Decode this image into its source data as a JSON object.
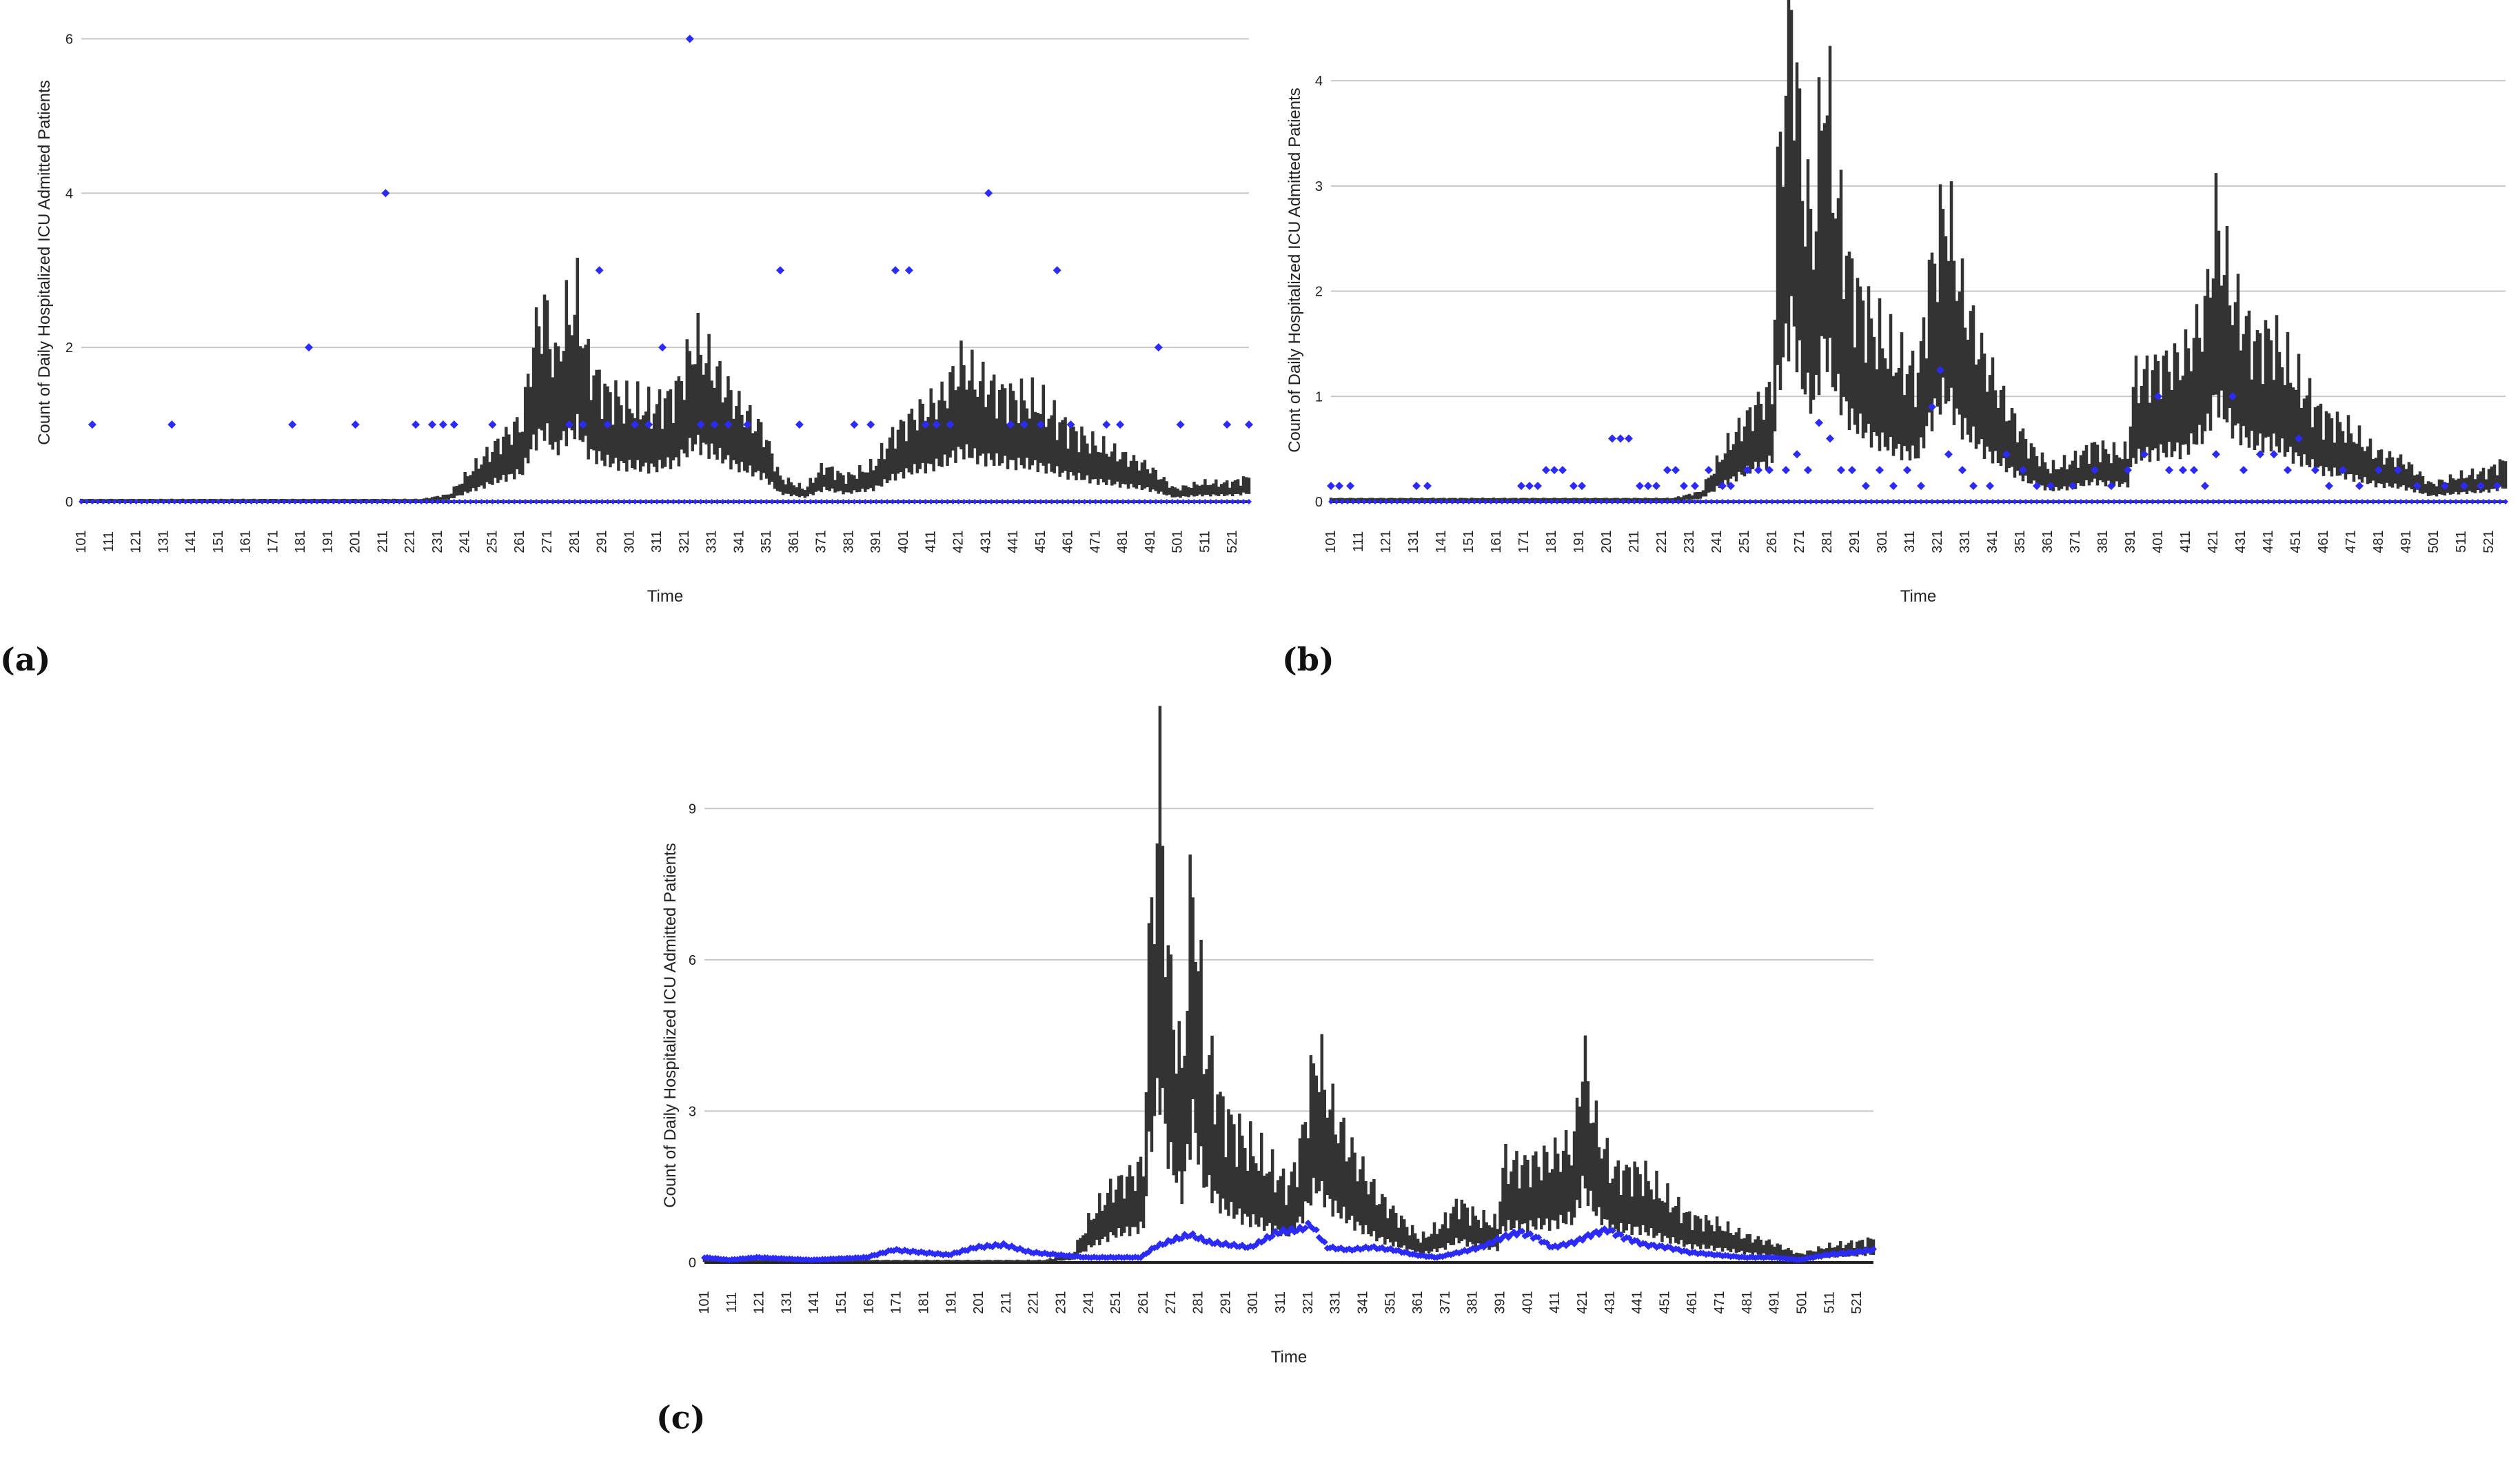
{
  "chart_data": [
    {
      "panel_label": "(a)",
      "type": "line",
      "xlabel": "Time",
      "ylabel": "Count of Daily Hospitalized ICU Admitted Patients",
      "xlim": [
        101,
        527
      ],
      "ylim": [
        0,
        6.2
      ],
      "yticks": [
        "0",
        "2",
        "4",
        "6"
      ],
      "xticks": [
        "101",
        "111",
        "121",
        "131",
        "141",
        "151",
        "161",
        "171",
        "181",
        "191",
        "201",
        "211",
        "221",
        "231",
        "241",
        "251",
        "261",
        "271",
        "281",
        "291",
        "301",
        "311",
        "321",
        "331",
        "341",
        "351",
        "361",
        "371",
        "381",
        "391",
        "401",
        "411",
        "421",
        "431",
        "441",
        "451",
        "461",
        "471",
        "481",
        "491",
        "501",
        "511",
        "521"
      ],
      "grid": true,
      "colors": {
        "band": "#333333",
        "observed": "#2b2bf5",
        "grid": "#c8c8c8"
      },
      "band_mean_profile": [
        [
          101,
          0.01
        ],
        [
          225,
          0.01
        ],
        [
          235,
          0.05
        ],
        [
          245,
          0.3
        ],
        [
          255,
          0.55
        ],
        [
          262,
          0.7
        ],
        [
          266,
          1.4
        ],
        [
          270,
          1.7
        ],
        [
          274,
          1.2
        ],
        [
          278,
          1.6
        ],
        [
          282,
          1.75
        ],
        [
          286,
          1.2
        ],
        [
          292,
          0.95
        ],
        [
          300,
          0.85
        ],
        [
          310,
          0.8
        ],
        [
          318,
          0.95
        ],
        [
          325,
          1.4
        ],
        [
          332,
          1.15
        ],
        [
          340,
          0.85
        ],
        [
          350,
          0.6
        ],
        [
          356,
          0.2
        ],
        [
          365,
          0.1
        ],
        [
          372,
          0.3
        ],
        [
          380,
          0.2
        ],
        [
          390,
          0.3
        ],
        [
          398,
          0.6
        ],
        [
          405,
          0.75
        ],
        [
          415,
          0.9
        ],
        [
          422,
          1.2
        ],
        [
          428,
          1.05
        ],
        [
          436,
          0.95
        ],
        [
          442,
          0.9
        ],
        [
          450,
          0.85
        ],
        [
          460,
          0.65
        ],
        [
          470,
          0.5
        ],
        [
          480,
          0.4
        ],
        [
          490,
          0.3
        ],
        [
          500,
          0.1
        ],
        [
          510,
          0.15
        ],
        [
          520,
          0.15
        ],
        [
          527,
          0.2
        ]
      ],
      "observed_nonzero": [
        [
          105,
          1
        ],
        [
          134,
          1
        ],
        [
          178,
          1
        ],
        [
          184,
          2
        ],
        [
          201,
          1
        ],
        [
          212,
          4
        ],
        [
          223,
          1
        ],
        [
          229,
          1
        ],
        [
          233,
          1
        ],
        [
          237,
          1
        ],
        [
          251,
          1
        ],
        [
          279,
          1
        ],
        [
          284,
          1
        ],
        [
          290,
          3
        ],
        [
          293,
          1
        ],
        [
          303,
          1
        ],
        [
          308,
          1
        ],
        [
          313,
          2
        ],
        [
          323,
          6
        ],
        [
          327,
          1
        ],
        [
          332,
          1
        ],
        [
          337,
          1
        ],
        [
          344,
          1
        ],
        [
          356,
          3
        ],
        [
          363,
          1
        ],
        [
          383,
          1
        ],
        [
          389,
          1
        ],
        [
          398,
          3
        ],
        [
          403,
          3
        ],
        [
          409,
          1
        ],
        [
          413,
          1
        ],
        [
          418,
          1
        ],
        [
          432,
          4
        ],
        [
          440,
          1
        ],
        [
          445,
          1
        ],
        [
          451,
          1
        ],
        [
          457,
          3
        ],
        [
          462,
          1
        ],
        [
          475,
          1
        ],
        [
          480,
          1
        ],
        [
          494,
          2
        ],
        [
          502,
          1
        ],
        [
          519,
          1
        ],
        [
          527,
          1
        ]
      ]
    },
    {
      "panel_label": "(b)",
      "type": "line",
      "xlabel": "Time",
      "ylabel": "Count of Daily Hospitalized ICU Admitted Patients",
      "xlim": [
        101,
        527
      ],
      "ylim": [
        0,
        4.4
      ],
      "yticks": [
        "0",
        "1",
        "2",
        "3",
        "4"
      ],
      "xticks": [
        "101",
        "111",
        "121",
        "131",
        "141",
        "151",
        "161",
        "171",
        "181",
        "191",
        "201",
        "211",
        "221",
        "231",
        "241",
        "251",
        "261",
        "271",
        "281",
        "291",
        "301",
        "311",
        "321",
        "331",
        "341",
        "351",
        "361",
        "371",
        "381",
        "391",
        "401",
        "411",
        "421",
        "431",
        "441",
        "451",
        "461",
        "471",
        "481",
        "491",
        "501",
        "511",
        "521"
      ],
      "grid": true,
      "colors": {
        "band": "#333333",
        "observed": "#2b2bf5",
        "grid": "#c8c8c8"
      },
      "band_mean_profile": [
        [
          101,
          0.01
        ],
        [
          225,
          0.01
        ],
        [
          235,
          0.05
        ],
        [
          245,
          0.35
        ],
        [
          255,
          0.6
        ],
        [
          261,
          0.7
        ],
        [
          263,
          2.0
        ],
        [
          268,
          3.2
        ],
        [
          272,
          2.1
        ],
        [
          276,
          1.7
        ],
        [
          280,
          2.8
        ],
        [
          284,
          2.0
        ],
        [
          290,
          1.4
        ],
        [
          298,
          1.1
        ],
        [
          306,
          0.9
        ],
        [
          314,
          0.8
        ],
        [
          318,
          1.4
        ],
        [
          324,
          1.9
        ],
        [
          330,
          1.3
        ],
        [
          338,
          0.9
        ],
        [
          346,
          0.6
        ],
        [
          354,
          0.35
        ],
        [
          362,
          0.2
        ],
        [
          370,
          0.25
        ],
        [
          378,
          0.35
        ],
        [
          384,
          0.3
        ],
        [
          390,
          0.3
        ],
        [
          392,
          0.75
        ],
        [
          400,
          0.85
        ],
        [
          410,
          0.9
        ],
        [
          418,
          1.2
        ],
        [
          422,
          1.8
        ],
        [
          428,
          1.3
        ],
        [
          436,
          1.0
        ],
        [
          442,
          1.05
        ],
        [
          450,
          0.8
        ],
        [
          460,
          0.55
        ],
        [
          470,
          0.45
        ],
        [
          480,
          0.3
        ],
        [
          490,
          0.25
        ],
        [
          500,
          0.1
        ],
        [
          510,
          0.15
        ],
        [
          520,
          0.18
        ],
        [
          527,
          0.25
        ]
      ],
      "observed_nonzero": [
        [
          101,
          0.15
        ],
        [
          104,
          0.15
        ],
        [
          108,
          0.15
        ],
        [
          132,
          0.15
        ],
        [
          136,
          0.15
        ],
        [
          170,
          0.15
        ],
        [
          173,
          0.15
        ],
        [
          176,
          0.15
        ],
        [
          179,
          0.3
        ],
        [
          182,
          0.3
        ],
        [
          185,
          0.3
        ],
        [
          189,
          0.15
        ],
        [
          192,
          0.15
        ],
        [
          203,
          0.6
        ],
        [
          206,
          0.6
        ],
        [
          209,
          0.6
        ],
        [
          213,
          0.15
        ],
        [
          216,
          0.15
        ],
        [
          219,
          0.15
        ],
        [
          223,
          0.3
        ],
        [
          226,
          0.3
        ],
        [
          229,
          0.15
        ],
        [
          233,
          0.15
        ],
        [
          238,
          0.3
        ],
        [
          243,
          0.15
        ],
        [
          246,
          0.15
        ],
        [
          252,
          0.3
        ],
        [
          256,
          0.3
        ],
        [
          260,
          0.3
        ],
        [
          266,
          0.3
        ],
        [
          270,
          0.45
        ],
        [
          274,
          0.3
        ],
        [
          278,
          0.75
        ],
        [
          282,
          0.6
        ],
        [
          286,
          0.3
        ],
        [
          290,
          0.3
        ],
        [
          295,
          0.15
        ],
        [
          300,
          0.3
        ],
        [
          305,
          0.15
        ],
        [
          310,
          0.3
        ],
        [
          315,
          0.15
        ],
        [
          319,
          0.9
        ],
        [
          322,
          1.25
        ],
        [
          325,
          0.45
        ],
        [
          330,
          0.3
        ],
        [
          334,
          0.15
        ],
        [
          340,
          0.15
        ],
        [
          346,
          0.45
        ],
        [
          352,
          0.3
        ],
        [
          357,
          0.15
        ],
        [
          362,
          0.15
        ],
        [
          370,
          0.15
        ],
        [
          378,
          0.3
        ],
        [
          384,
          0.15
        ],
        [
          390,
          0.3
        ],
        [
          396,
          0.45
        ],
        [
          401,
          1.0
        ],
        [
          405,
          0.3
        ],
        [
          410,
          0.3
        ],
        [
          414,
          0.3
        ],
        [
          418,
          0.15
        ],
        [
          422,
          0.45
        ],
        [
          428,
          1.0
        ],
        [
          432,
          0.3
        ],
        [
          438,
          0.45
        ],
        [
          443,
          0.45
        ],
        [
          448,
          0.3
        ],
        [
          452,
          0.6
        ],
        [
          458,
          0.3
        ],
        [
          463,
          0.15
        ],
        [
          468,
          0.3
        ],
        [
          474,
          0.15
        ],
        [
          481,
          0.3
        ],
        [
          488,
          0.3
        ],
        [
          495,
          0.15
        ],
        [
          505,
          0.15
        ],
        [
          512,
          0.15
        ],
        [
          518,
          0.15
        ],
        [
          524,
          0.15
        ]
      ]
    },
    {
      "panel_label": "(c)",
      "type": "line",
      "xlabel": "Time",
      "ylabel": "Count of Daily Hospitalized ICU Admitted Patients",
      "xlim": [
        101,
        527
      ],
      "ylim": [
        0,
        9.4
      ],
      "yticks": [
        "0",
        "3",
        "6",
        "9"
      ],
      "xticks": [
        "101",
        "111",
        "121",
        "131",
        "141",
        "151",
        "161",
        "171",
        "181",
        "191",
        "201",
        "211",
        "221",
        "231",
        "241",
        "251",
        "261",
        "271",
        "281",
        "291",
        "301",
        "311",
        "321",
        "331",
        "341",
        "351",
        "361",
        "371",
        "381",
        "391",
        "401",
        "411",
        "421",
        "431",
        "441",
        "451",
        "461",
        "471",
        "481",
        "491",
        "501",
        "511",
        "521"
      ],
      "grid": true,
      "colors": {
        "band": "#333333",
        "observed": "#2b2bf5",
        "grid": "#c8c8c8"
      },
      "band_mean_profile": [
        [
          101,
          0.02
        ],
        [
          225,
          0.02
        ],
        [
          235,
          0.1
        ],
        [
          242,
          0.6
        ],
        [
          250,
          1.0
        ],
        [
          258,
          1.2
        ],
        [
          261,
          1.3
        ],
        [
          263,
          4.0
        ],
        [
          267,
          6.5
        ],
        [
          270,
          4.0
        ],
        [
          275,
          2.5
        ],
        [
          279,
          5.2
        ],
        [
          283,
          3.0
        ],
        [
          290,
          2.0
        ],
        [
          298,
          1.6
        ],
        [
          306,
          1.3
        ],
        [
          314,
          1.0
        ],
        [
          318,
          1.5
        ],
        [
          324,
          2.8
        ],
        [
          330,
          2.0
        ],
        [
          338,
          1.4
        ],
        [
          346,
          0.9
        ],
        [
          354,
          0.6
        ],
        [
          362,
          0.3
        ],
        [
          370,
          0.5
        ],
        [
          376,
          0.8
        ],
        [
          382,
          0.6
        ],
        [
          390,
          0.5
        ],
        [
          392,
          1.3
        ],
        [
          400,
          1.3
        ],
        [
          410,
          1.4
        ],
        [
          418,
          1.6
        ],
        [
          421,
          2.8
        ],
        [
          426,
          1.8
        ],
        [
          432,
          1.2
        ],
        [
          442,
          1.2
        ],
        [
          450,
          0.9
        ],
        [
          460,
          0.6
        ],
        [
          470,
          0.5
        ],
        [
          480,
          0.35
        ],
        [
          490,
          0.25
        ],
        [
          500,
          0.1
        ],
        [
          510,
          0.2
        ],
        [
          520,
          0.25
        ],
        [
          527,
          0.3
        ]
      ],
      "observed_mean_profile": [
        [
          101,
          0.1
        ],
        [
          110,
          0.05
        ],
        [
          120,
          0.1
        ],
        [
          140,
          0.05
        ],
        [
          160,
          0.1
        ],
        [
          170,
          0.25
        ],
        [
          180,
          0.2
        ],
        [
          190,
          0.15
        ],
        [
          200,
          0.3
        ],
        [
          210,
          0.35
        ],
        [
          220,
          0.2
        ],
        [
          230,
          0.15
        ],
        [
          240,
          0.1
        ],
        [
          250,
          0.1
        ],
        [
          260,
          0.1
        ],
        [
          265,
          0.3
        ],
        [
          272,
          0.45
        ],
        [
          278,
          0.55
        ],
        [
          285,
          0.4
        ],
        [
          292,
          0.35
        ],
        [
          300,
          0.3
        ],
        [
          310,
          0.6
        ],
        [
          318,
          0.65
        ],
        [
          322,
          0.75
        ],
        [
          328,
          0.3
        ],
        [
          336,
          0.25
        ],
        [
          344,
          0.3
        ],
        [
          352,
          0.25
        ],
        [
          360,
          0.15
        ],
        [
          368,
          0.1
        ],
        [
          376,
          0.2
        ],
        [
          384,
          0.3
        ],
        [
          392,
          0.5
        ],
        [
          398,
          0.6
        ],
        [
          404,
          0.5
        ],
        [
          410,
          0.3
        ],
        [
          418,
          0.4
        ],
        [
          424,
          0.55
        ],
        [
          430,
          0.65
        ],
        [
          436,
          0.5
        ],
        [
          444,
          0.35
        ],
        [
          452,
          0.3
        ],
        [
          460,
          0.2
        ],
        [
          470,
          0.15
        ],
        [
          480,
          0.1
        ],
        [
          490,
          0.1
        ],
        [
          500,
          0.05
        ],
        [
          510,
          0.15
        ],
        [
          520,
          0.2
        ],
        [
          527,
          0.25
        ]
      ]
    }
  ]
}
